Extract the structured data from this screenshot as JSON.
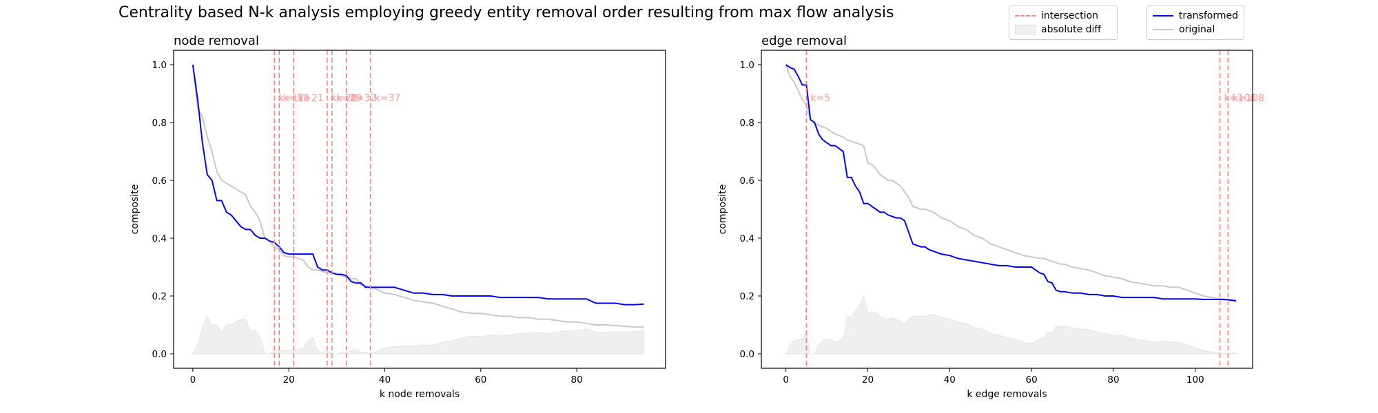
{
  "figure": {
    "title": "Centrality based N-k analysis employing greedy entity removal order resulting from max flow analysis"
  },
  "legend_left": [
    {
      "label": "intersection",
      "style": "dashed",
      "color": "#ff7f7f"
    },
    {
      "label": "absolute diff",
      "style": "fill",
      "color": "#efefef"
    }
  ],
  "legend_right": [
    {
      "label": "transformed",
      "style": "line",
      "color": "#0000ff"
    },
    {
      "label": "original",
      "style": "line",
      "color": "#c8c8c8"
    }
  ],
  "chart_data": [
    {
      "type": "line",
      "title": "node removal",
      "xlabel": "k node removals",
      "ylabel": "composite",
      "xlim": [
        -4,
        98.5
      ],
      "ylim": [
        -0.05,
        1.05
      ],
      "xticks": [
        0,
        20,
        40,
        60,
        80
      ],
      "yticks": [
        0.0,
        0.2,
        0.4,
        0.6,
        0.8,
        1.0
      ],
      "colors": {
        "transformed": "#0000ff",
        "original": "#c8c8c8",
        "diff": "#efefef",
        "intersection": "#ff7f7f"
      },
      "series": [
        {
          "name": "transformed",
          "x": [
            0,
            1,
            2,
            3,
            4,
            5,
            6,
            7,
            8,
            9,
            10,
            11,
            12,
            13,
            14,
            15,
            16,
            17,
            18,
            19,
            20,
            21,
            22,
            23,
            24,
            25,
            26,
            27,
            28,
            29,
            30,
            31,
            32,
            33,
            34,
            35,
            36,
            37,
            38,
            40,
            42,
            44,
            46,
            48,
            50,
            52,
            54,
            56,
            58,
            60,
            62,
            64,
            66,
            68,
            70,
            72,
            74,
            76,
            78,
            80,
            82,
            84,
            86,
            88,
            90,
            92,
            94
          ],
          "y": [
            1.0,
            0.88,
            0.73,
            0.62,
            0.6,
            0.53,
            0.53,
            0.49,
            0.48,
            0.46,
            0.44,
            0.43,
            0.43,
            0.41,
            0.4,
            0.4,
            0.39,
            0.385,
            0.37,
            0.35,
            0.345,
            0.345,
            0.345,
            0.345,
            0.345,
            0.345,
            0.3,
            0.29,
            0.29,
            0.28,
            0.275,
            0.275,
            0.27,
            0.25,
            0.245,
            0.245,
            0.23,
            0.23,
            0.23,
            0.23,
            0.23,
            0.22,
            0.21,
            0.21,
            0.205,
            0.205,
            0.2,
            0.2,
            0.2,
            0.2,
            0.2,
            0.195,
            0.195,
            0.195,
            0.195,
            0.195,
            0.19,
            0.19,
            0.19,
            0.19,
            0.19,
            0.175,
            0.175,
            0.175,
            0.17,
            0.17,
            0.172
          ]
        },
        {
          "name": "original",
          "x": [
            0,
            1,
            2,
            3,
            4,
            5,
            6,
            7,
            8,
            9,
            10,
            11,
            12,
            13,
            14,
            15,
            16,
            17,
            18,
            19,
            20,
            21,
            22,
            23,
            24,
            25,
            26,
            27,
            28,
            29,
            30,
            31,
            32,
            33,
            34,
            35,
            36,
            37,
            38,
            40,
            42,
            44,
            46,
            48,
            50,
            52,
            54,
            56,
            58,
            60,
            62,
            64,
            66,
            68,
            70,
            72,
            74,
            76,
            78,
            80,
            82,
            84,
            86,
            88,
            90,
            92,
            94
          ],
          "y": [
            1.0,
            0.85,
            0.82,
            0.75,
            0.7,
            0.63,
            0.6,
            0.59,
            0.58,
            0.57,
            0.56,
            0.55,
            0.51,
            0.49,
            0.46,
            0.4,
            0.39,
            0.37,
            0.36,
            0.34,
            0.335,
            0.335,
            0.33,
            0.325,
            0.3,
            0.29,
            0.29,
            0.285,
            0.28,
            0.28,
            0.275,
            0.27,
            0.265,
            0.26,
            0.26,
            0.24,
            0.235,
            0.23,
            0.225,
            0.21,
            0.205,
            0.195,
            0.185,
            0.18,
            0.175,
            0.165,
            0.155,
            0.145,
            0.14,
            0.14,
            0.135,
            0.13,
            0.13,
            0.125,
            0.125,
            0.12,
            0.12,
            0.115,
            0.11,
            0.11,
            0.105,
            0.1,
            0.1,
            0.098,
            0.095,
            0.093,
            0.092
          ]
        }
      ],
      "intersections": [
        17,
        18,
        21,
        28,
        29,
        32,
        37
      ],
      "intersection_labels": [
        "k=17",
        "k=18",
        "k=21",
        "k=28",
        "k=29",
        "k=32",
        "k=37"
      ]
    },
    {
      "type": "line",
      "title": "edge removal",
      "xlabel": "k edge removals",
      "ylabel": "composite",
      "xlim": [
        -6,
        114
      ],
      "ylim": [
        -0.05,
        1.05
      ],
      "xticks": [
        0,
        20,
        40,
        60,
        80,
        100
      ],
      "yticks": [
        0.0,
        0.2,
        0.4,
        0.6,
        0.8,
        1.0
      ],
      "colors": {
        "transformed": "#0000ff",
        "original": "#c8c8c8",
        "diff": "#efefef",
        "intersection": "#ff7f7f"
      },
      "series": [
        {
          "name": "transformed",
          "x": [
            0,
            1,
            2,
            3,
            4,
            5,
            6,
            7,
            8,
            9,
            10,
            11,
            12,
            13,
            14,
            15,
            16,
            17,
            18,
            19,
            20,
            21,
            22,
            23,
            24,
            25,
            26,
            27,
            28,
            29,
            30,
            31,
            32,
            33,
            34,
            35,
            36,
            38,
            40,
            42,
            44,
            46,
            48,
            50,
            52,
            54,
            56,
            58,
            60,
            62,
            63,
            64,
            65,
            66,
            67,
            68,
            70,
            72,
            74,
            76,
            78,
            80,
            82,
            84,
            86,
            88,
            90,
            92,
            94,
            96,
            98,
            100,
            102,
            104,
            106,
            108,
            110
          ],
          "y": [
            1.0,
            0.99,
            0.985,
            0.96,
            0.93,
            0.93,
            0.81,
            0.8,
            0.76,
            0.74,
            0.73,
            0.72,
            0.72,
            0.71,
            0.7,
            0.61,
            0.61,
            0.58,
            0.56,
            0.52,
            0.52,
            0.51,
            0.5,
            0.49,
            0.49,
            0.48,
            0.475,
            0.47,
            0.47,
            0.46,
            0.42,
            0.38,
            0.375,
            0.37,
            0.37,
            0.36,
            0.355,
            0.345,
            0.34,
            0.33,
            0.325,
            0.32,
            0.315,
            0.31,
            0.305,
            0.305,
            0.3,
            0.3,
            0.3,
            0.28,
            0.275,
            0.25,
            0.245,
            0.22,
            0.215,
            0.215,
            0.21,
            0.21,
            0.205,
            0.205,
            0.2,
            0.2,
            0.195,
            0.195,
            0.195,
            0.195,
            0.195,
            0.19,
            0.19,
            0.19,
            0.19,
            0.19,
            0.188,
            0.188,
            0.188,
            0.187,
            0.183
          ]
        },
        {
          "name": "original",
          "x": [
            0,
            1,
            2,
            3,
            4,
            5,
            6,
            7,
            8,
            9,
            10,
            11,
            12,
            13,
            14,
            15,
            16,
            17,
            18,
            19,
            20,
            21,
            22,
            23,
            24,
            25,
            26,
            27,
            28,
            29,
            30,
            31,
            32,
            33,
            34,
            35,
            36,
            38,
            40,
            42,
            44,
            46,
            48,
            50,
            52,
            54,
            56,
            58,
            60,
            62,
            63,
            64,
            65,
            66,
            67,
            68,
            70,
            72,
            74,
            76,
            78,
            80,
            82,
            84,
            86,
            88,
            90,
            92,
            94,
            96,
            98,
            100,
            102,
            104,
            106,
            108,
            110
          ],
          "y": [
            1.0,
            0.96,
            0.94,
            0.91,
            0.88,
            0.86,
            0.81,
            0.8,
            0.79,
            0.785,
            0.78,
            0.77,
            0.76,
            0.755,
            0.75,
            0.74,
            0.735,
            0.73,
            0.725,
            0.72,
            0.66,
            0.655,
            0.64,
            0.62,
            0.61,
            0.6,
            0.6,
            0.59,
            0.58,
            0.56,
            0.54,
            0.51,
            0.505,
            0.5,
            0.5,
            0.495,
            0.49,
            0.47,
            0.46,
            0.44,
            0.43,
            0.41,
            0.4,
            0.38,
            0.37,
            0.36,
            0.35,
            0.34,
            0.335,
            0.33,
            0.33,
            0.325,
            0.32,
            0.315,
            0.31,
            0.31,
            0.3,
            0.295,
            0.29,
            0.28,
            0.27,
            0.265,
            0.26,
            0.25,
            0.245,
            0.24,
            0.235,
            0.235,
            0.23,
            0.23,
            0.22,
            0.21,
            0.2,
            0.195,
            0.19,
            0.188,
            0.186
          ]
        }
      ],
      "intersections": [
        5,
        106,
        108
      ],
      "intersection_labels": [
        "k=5",
        "k=106",
        "k=108"
      ]
    }
  ]
}
